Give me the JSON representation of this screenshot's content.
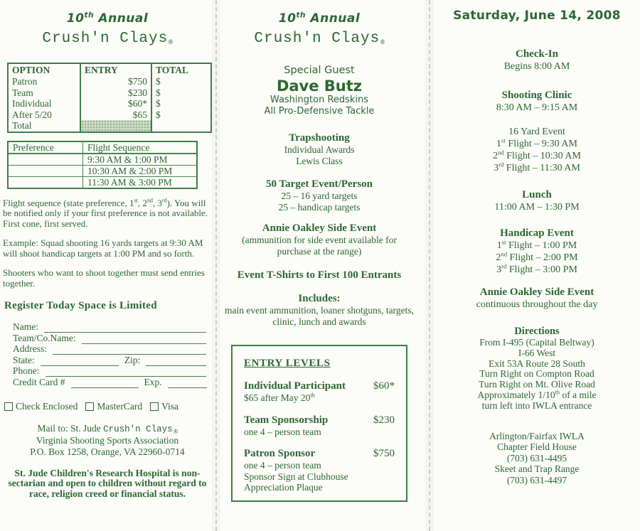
{
  "colors": {
    "ink": "#2c6633",
    "table_border": "#3e7d46",
    "shaded_cell": "#ccdbc6",
    "fold_line": "#bccbb5"
  },
  "brand": {
    "annual": "10^{th} Annual",
    "name": "Crush'n Clays",
    "reg": "®"
  },
  "left": {
    "options_table": {
      "headers": [
        "OPTION",
        "ENTRY",
        "TOTAL"
      ],
      "rows": [
        [
          "Patron",
          "$750",
          "$"
        ],
        [
          "Team",
          "$230",
          "$"
        ],
        [
          "Individual",
          "$60*",
          "$"
        ],
        [
          "After 5/20",
          "$65",
          "$"
        ],
        [
          "Total",
          "",
          ""
        ]
      ]
    },
    "preference_table": {
      "headers": [
        "Preference",
        "Flight Sequence"
      ],
      "rows": [
        "9:30 AM & 1:00 PM",
        "10:30 AM & 2:00 PM",
        "11:30 AM & 3:00 PM"
      ]
    },
    "para_flight": "Flight sequence (state preference, 1^{st}, 2^{nd}, 3^{rd}).  You will be notified only if your first preference is not available. First cone, first served.",
    "para_example": "Example: Squad shooting 16 yards targets at 9:30 AM will shoot handicap targets at 1:00 PM and so forth.",
    "para_together": "Shooters who want to shoot together must send entries together.",
    "register_heading": "Register Today Space is Limited",
    "form": {
      "name": "Name:",
      "team": "Team/Co.Name:",
      "address": "Address:",
      "state": "State:",
      "zip": "Zip:",
      "phone": "Phone:",
      "credit_card": "Credit Card #",
      "exp": "Exp."
    },
    "payment": [
      "Check Enclosed",
      "MasterCard",
      "Visa"
    ],
    "mail_to": {
      "prefix": "Mail to: St. Jude",
      "brand": "Crush'n Clays",
      "line2": "Virginia Shooting Sports Association",
      "line3": "P.O. Box 1258, Orange, VA 22960-0714"
    },
    "footer": "St. Jude Children's Research Hospital is non-sectarian and open to children without regard to race, religion creed or financial status."
  },
  "middle": {
    "special_guest": "Special Guest",
    "guest_name": "Dave Butz",
    "guest_team": "Washington Redskins",
    "guest_title": "All Pro-Defensive Tackle",
    "trapshooting": "Trapshooting",
    "individual_awards": "Individual Awards",
    "lewis_class": "Lewis Class",
    "target_event": "50 Target Event/Person",
    "target_line1": "25 – 16 yard targets",
    "target_line2": "25 – handicap targets",
    "annie_title": "Annie Oakley Side Event",
    "annie_note": "(ammunition for side event available for purchase at the range)",
    "tshirts": "Event T-Shirts to First 100 Entrants",
    "includes_heading": "Includes:",
    "includes_text": "main event ammunition, loaner shotguns, targets, clinic, lunch and awards",
    "entry_levels": {
      "heading": "ENTRY LEVELS",
      "items": [
        {
          "name": "Individual Participant",
          "price": "$60*",
          "details": [
            "$65 after May 20^{th}"
          ]
        },
        {
          "name": "Team Sponsorship",
          "price": "$230",
          "details": [
            "one 4 – person team"
          ]
        },
        {
          "name": "Patron Sponsor",
          "price": "$750",
          "details": [
            "one 4 – person team",
            "Sponsor Sign at Clubhouse",
            "Appreciation Plaque"
          ]
        }
      ]
    }
  },
  "right": {
    "date": "Saturday, June 14, 2008",
    "checkin": {
      "title": "Check-In",
      "line": "Begins 8:00 AM"
    },
    "clinic": {
      "title": "Shooting Clinic",
      "line": "8:30 AM – 9:15 AM"
    },
    "yard16": {
      "title": "16 Yard Event",
      "lines": [
        "1^{st} Flight – 9:30 AM",
        "2^{nd} Flight – 10:30 AM",
        "3^{rd} Flight – 11:30 AM"
      ]
    },
    "lunch": {
      "title": "Lunch",
      "line": "11:00 AM – 1:30 PM"
    },
    "handicap": {
      "title": "Handicap Event",
      "lines": [
        "1^{st} Flight – 1:00 PM",
        "2^{nd} Flight – 2:00 PM",
        "3^{rd} Flight – 3:00 PM"
      ]
    },
    "annie": {
      "title": "Annie Oakley Side Event",
      "line": "continuous throughout the day"
    },
    "directions": {
      "title": "Directions",
      "lines": [
        "From I-495 (Capital Beltway)",
        "I-66 West",
        "Exit 53A Route 28 South",
        "Turn Right on Compton Road",
        "Turn Right on Mt. Olive Road",
        "Approximately 1/10^{th} of a mile",
        "turn left into IWLA entrance"
      ]
    },
    "contact": {
      "lines": [
        "Arlington/Fairfax IWLA",
        "Chapter Field House",
        "(703) 631-4495",
        "Skeet and Trap Range",
        "(703) 631-4497"
      ]
    }
  }
}
